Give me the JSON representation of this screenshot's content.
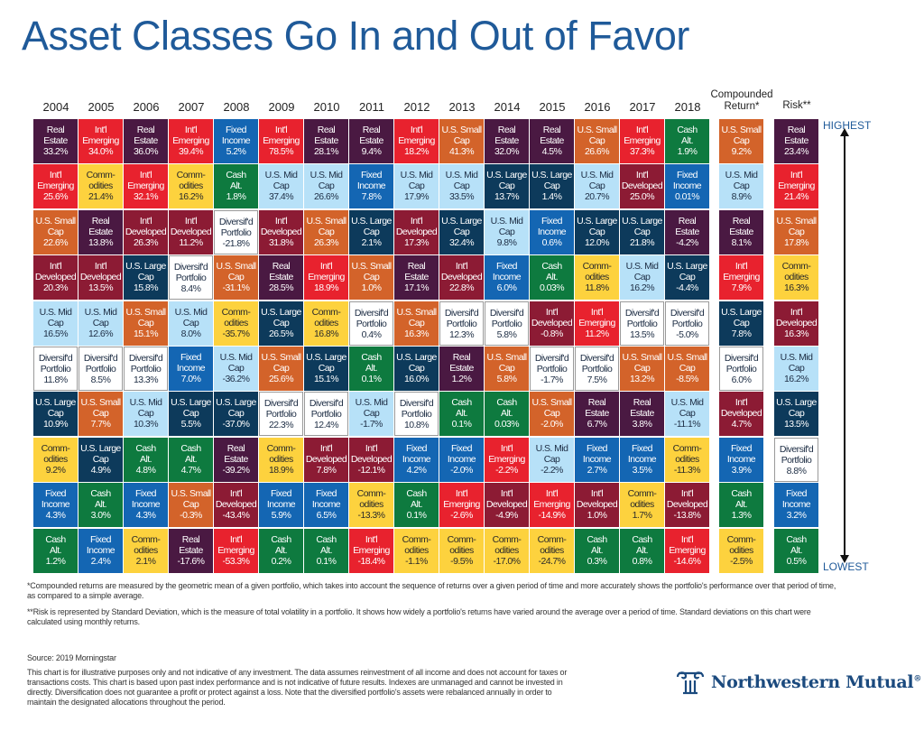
{
  "title": "Asset Classes Go In and Out of Favor",
  "headers": {
    "years": [
      "2004",
      "2005",
      "2006",
      "2007",
      "2008",
      "2009",
      "2010",
      "2011",
      "2012",
      "2013",
      "2014",
      "2015",
      "2016",
      "2017",
      "2018"
    ],
    "compounded": "Compounded Return*",
    "risk": "Risk**"
  },
  "scale": {
    "highest": "HIGHEST",
    "lowest": "LOWEST"
  },
  "classes": {
    "RE": {
      "line1": "Real",
      "line2": "Estate",
      "color": "#4a1942",
      "text": "#ffffff"
    },
    "EM": {
      "line1": "Int'l",
      "line2": "Emerging",
      "color": "#e8222e",
      "text": "#ffffff"
    },
    "COM": {
      "line1": "Comm-",
      "line2": "odities",
      "color": "#fdd23e",
      "text": "#2a2a2a"
    },
    "DEV": {
      "line1": "Int'l",
      "line2": "Developed",
      "color": "#8c1b34",
      "text": "#ffffff"
    },
    "SC": {
      "line1": "U.S. Small",
      "line2": "Cap",
      "color": "#d3632a",
      "text": "#ffffff"
    },
    "MC": {
      "line1": "U.S. Mid",
      "line2": "Cap",
      "color": "#b7e1f8",
      "text": "#1d2d44"
    },
    "LC": {
      "line1": "U.S. Large",
      "line2": "Cap",
      "color": "#0d3a5b",
      "text": "#ffffff"
    },
    "FI": {
      "line1": "Fixed",
      "line2": "Income",
      "color": "#1466b3",
      "text": "#ffffff"
    },
    "CASH": {
      "line1": "Cash",
      "line2": "Alt.",
      "color": "#0e7a3f",
      "text": "#ffffff"
    },
    "DIV": {
      "line1": "Diversif'd",
      "line2": "Portfolio",
      "color": "#ffffff",
      "text": "#1d2d44"
    }
  },
  "chart_data": {
    "type": "table",
    "title": "Asset Classes Go In and Out of Favor",
    "order": "ranked highest to lowest",
    "columns": [
      {
        "label": "2004",
        "cells": [
          [
            "RE",
            "33.2%"
          ],
          [
            "EM",
            "25.6%"
          ],
          [
            "SC",
            "22.6%"
          ],
          [
            "DEV",
            "20.3%"
          ],
          [
            "MC",
            "16.5%"
          ],
          [
            "DIV",
            "11.8%"
          ],
          [
            "LC",
            "10.9%"
          ],
          [
            "COM",
            "9.2%"
          ],
          [
            "FI",
            "4.3%"
          ],
          [
            "CASH",
            "1.2%"
          ]
        ]
      },
      {
        "label": "2005",
        "cells": [
          [
            "EM",
            "34.0%"
          ],
          [
            "COM",
            "21.4%"
          ],
          [
            "RE",
            "13.8%"
          ],
          [
            "DEV",
            "13.5%"
          ],
          [
            "MC",
            "12.6%"
          ],
          [
            "DIV",
            "8.5%"
          ],
          [
            "SC",
            "7.7%"
          ],
          [
            "LC",
            "4.9%"
          ],
          [
            "CASH",
            "3.0%"
          ],
          [
            "FI",
            "2.4%"
          ]
        ]
      },
      {
        "label": "2006",
        "cells": [
          [
            "RE",
            "36.0%"
          ],
          [
            "EM",
            "32.1%"
          ],
          [
            "DEV",
            "26.3%"
          ],
          [
            "LC",
            "15.8%"
          ],
          [
            "SC",
            "15.1%"
          ],
          [
            "DIV",
            "13.3%"
          ],
          [
            "MC",
            "10.3%"
          ],
          [
            "CASH",
            "4.8%"
          ],
          [
            "FI",
            "4.3%"
          ],
          [
            "COM",
            "2.1%"
          ]
        ]
      },
      {
        "label": "2007",
        "cells": [
          [
            "EM",
            "39.4%"
          ],
          [
            "COM",
            "16.2%"
          ],
          [
            "DEV",
            "11.2%"
          ],
          [
            "DIV",
            "8.4%"
          ],
          [
            "MC",
            "8.0%"
          ],
          [
            "FI",
            "7.0%"
          ],
          [
            "LC",
            "5.5%"
          ],
          [
            "CASH",
            "4.7%"
          ],
          [
            "SC",
            "-0.3%"
          ],
          [
            "RE",
            "-17.6%"
          ]
        ]
      },
      {
        "label": "2008",
        "cells": [
          [
            "FI",
            "5.2%"
          ],
          [
            "CASH",
            "1.8%"
          ],
          [
            "DIV",
            "-21.8%"
          ],
          [
            "SC",
            "-31.1%"
          ],
          [
            "COM",
            "-35.7%"
          ],
          [
            "MC",
            "-36.2%"
          ],
          [
            "LC",
            "-37.0%"
          ],
          [
            "RE",
            "-39.2%"
          ],
          [
            "DEV",
            "-43.4%"
          ],
          [
            "EM",
            "-53.3%"
          ]
        ]
      },
      {
        "label": "2009",
        "cells": [
          [
            "EM",
            "78.5%"
          ],
          [
            "MC",
            "37.4%"
          ],
          [
            "DEV",
            "31.8%"
          ],
          [
            "RE",
            "28.5%"
          ],
          [
            "LC",
            "26.5%"
          ],
          [
            "SC",
            "25.6%"
          ],
          [
            "DIV",
            "22.3%"
          ],
          [
            "COM",
            "18.9%"
          ],
          [
            "FI",
            "5.9%"
          ],
          [
            "CASH",
            "0.2%"
          ]
        ]
      },
      {
        "label": "2010",
        "cells": [
          [
            "RE",
            "28.1%"
          ],
          [
            "MC",
            "26.6%"
          ],
          [
            "SC",
            "26.3%"
          ],
          [
            "EM",
            "18.9%"
          ],
          [
            "COM",
            "16.8%"
          ],
          [
            "LC",
            "15.1%"
          ],
          [
            "DIV",
            "12.4%"
          ],
          [
            "DEV",
            "7.8%"
          ],
          [
            "FI",
            "6.5%"
          ],
          [
            "CASH",
            "0.1%"
          ]
        ]
      },
      {
        "label": "2011",
        "cells": [
          [
            "RE",
            "9.4%"
          ],
          [
            "FI",
            "7.8%"
          ],
          [
            "LC",
            "2.1%"
          ],
          [
            "SC",
            "1.0%"
          ],
          [
            "DIV",
            "0.4%"
          ],
          [
            "CASH",
            "0.1%"
          ],
          [
            "MC",
            "-1.7%"
          ],
          [
            "DEV",
            "-12.1%"
          ],
          [
            "COM",
            "-13.3%"
          ],
          [
            "EM",
            "-18.4%"
          ]
        ]
      },
      {
        "label": "2012",
        "cells": [
          [
            "EM",
            "18.2%"
          ],
          [
            "MC",
            "17.9%"
          ],
          [
            "DEV",
            "17.3%"
          ],
          [
            "RE",
            "17.1%"
          ],
          [
            "SC",
            "16.3%"
          ],
          [
            "LC",
            "16.0%"
          ],
          [
            "DIV",
            "10.8%"
          ],
          [
            "FI",
            "4.2%"
          ],
          [
            "CASH",
            "0.1%"
          ],
          [
            "COM",
            "-1.1%"
          ]
        ]
      },
      {
        "label": "2013",
        "cells": [
          [
            "SC",
            "41.3%"
          ],
          [
            "MC",
            "33.5%"
          ],
          [
            "LC",
            "32.4%"
          ],
          [
            "DEV",
            "22.8%"
          ],
          [
            "DIV",
            "12.3%"
          ],
          [
            "RE",
            "1.2%"
          ],
          [
            "CASH",
            "0.1%"
          ],
          [
            "FI",
            "-2.0%"
          ],
          [
            "EM",
            "-2.6%"
          ],
          [
            "COM",
            "-9.5%"
          ]
        ]
      },
      {
        "label": "2014",
        "cells": [
          [
            "RE",
            "32.0%"
          ],
          [
            "LC",
            "13.7%"
          ],
          [
            "MC",
            "9.8%"
          ],
          [
            "FI",
            "6.0%"
          ],
          [
            "DIV",
            "5.8%"
          ],
          [
            "SC",
            "5.8%"
          ],
          [
            "CASH",
            "0.03%"
          ],
          [
            "EM",
            "-2.2%"
          ],
          [
            "DEV",
            "-4.9%"
          ],
          [
            "COM",
            "-17.0%"
          ]
        ]
      },
      {
        "label": "2015",
        "cells": [
          [
            "RE",
            "4.5%"
          ],
          [
            "LC",
            "1.4%"
          ],
          [
            "FI",
            "0.6%"
          ],
          [
            "CASH",
            "0.03%"
          ],
          [
            "DEV",
            "-0.8%"
          ],
          [
            "DIV",
            "-1.7%"
          ],
          [
            "SC",
            "-2.0%"
          ],
          [
            "MC",
            "-2.2%"
          ],
          [
            "EM",
            "-14.9%"
          ],
          [
            "COM",
            "-24.7%"
          ]
        ]
      },
      {
        "label": "2016",
        "cells": [
          [
            "SC",
            "26.6%"
          ],
          [
            "MC",
            "20.7%"
          ],
          [
            "LC",
            "12.0%"
          ],
          [
            "COM",
            "11.8%"
          ],
          [
            "EM",
            "11.2%"
          ],
          [
            "DIV",
            "7.5%"
          ],
          [
            "RE",
            "6.7%"
          ],
          [
            "FI",
            "2.7%"
          ],
          [
            "DEV",
            "1.0%"
          ],
          [
            "CASH",
            "0.3%"
          ]
        ]
      },
      {
        "label": "2017",
        "cells": [
          [
            "EM",
            "37.3%"
          ],
          [
            "DEV",
            "25.0%"
          ],
          [
            "LC",
            "21.8%"
          ],
          [
            "MC",
            "16.2%"
          ],
          [
            "DIV",
            "13.5%"
          ],
          [
            "SC",
            "13.2%"
          ],
          [
            "RE",
            "3.8%"
          ],
          [
            "FI",
            "3.5%"
          ],
          [
            "COM",
            "1.7%"
          ],
          [
            "CASH",
            "0.8%"
          ]
        ]
      },
      {
        "label": "2018",
        "cells": [
          [
            "CASH",
            "1.9%"
          ],
          [
            "FI",
            "0.01%"
          ],
          [
            "RE",
            "-4.2%"
          ],
          [
            "LC",
            "-4.4%"
          ],
          [
            "DIV",
            "-5.0%"
          ],
          [
            "SC",
            "-8.5%"
          ],
          [
            "MC",
            "-11.1%"
          ],
          [
            "COM",
            "-11.3%"
          ],
          [
            "DEV",
            "-13.8%"
          ],
          [
            "EM",
            "-14.6%"
          ]
        ]
      },
      {
        "label": "Compounded Return*",
        "cells": [
          [
            "SC",
            "9.2%"
          ],
          [
            "MC",
            "8.9%"
          ],
          [
            "RE",
            "8.1%"
          ],
          [
            "EM",
            "7.9%"
          ],
          [
            "LC",
            "7.8%"
          ],
          [
            "DIV",
            "6.0%"
          ],
          [
            "DEV",
            "4.7%"
          ],
          [
            "FI",
            "3.9%"
          ],
          [
            "CASH",
            "1.3%"
          ],
          [
            "COM",
            "-2.5%"
          ]
        ]
      },
      {
        "label": "Risk**",
        "cells": [
          [
            "RE",
            "23.4%"
          ],
          [
            "EM",
            "21.4%"
          ],
          [
            "SC",
            "17.8%"
          ],
          [
            "COM",
            "16.3%"
          ],
          [
            "DEV",
            "16.3%"
          ],
          [
            "MC",
            "16.2%"
          ],
          [
            "LC",
            "13.5%"
          ],
          [
            "DIV",
            "8.8%"
          ],
          [
            "FI",
            "3.2%"
          ],
          [
            "CASH",
            "0.5%"
          ]
        ]
      }
    ]
  },
  "footnotes": {
    "compounded": "*Compounded returns are measured by the geometric mean of a given portfolio, which takes into account the sequence of returns over a given period of time and more accurately shows the portfolio's performance over that period of time, as compared to a simple average.",
    "risk": "**Risk is represented by Standard Deviation, which is the measure of total volatility in a portfolio. It shows how widely a portfolio's returns have varied around the average over a period of time. Standard deviations on this chart were calculated using monthly returns.",
    "source": "Source: 2019 Morningstar",
    "disclaimer": "This chart is for illustrative purposes only and not indicative of any investment. The data assumes reinvestment of all income and does not account for taxes or transactions costs. This chart is based upon past index performance and is not indicative of future results. Indexes are unmanaged and cannot be invested in directly. Diversification does not guarantee a profit or protect against a loss. Note that the diversified portfolio's assets were rebalanced annually in order to maintain the designated allocations throughout the period."
  },
  "logo": {
    "text": "Northwestern Mutual",
    "mark": "®",
    "color": "#1b4a7e"
  }
}
